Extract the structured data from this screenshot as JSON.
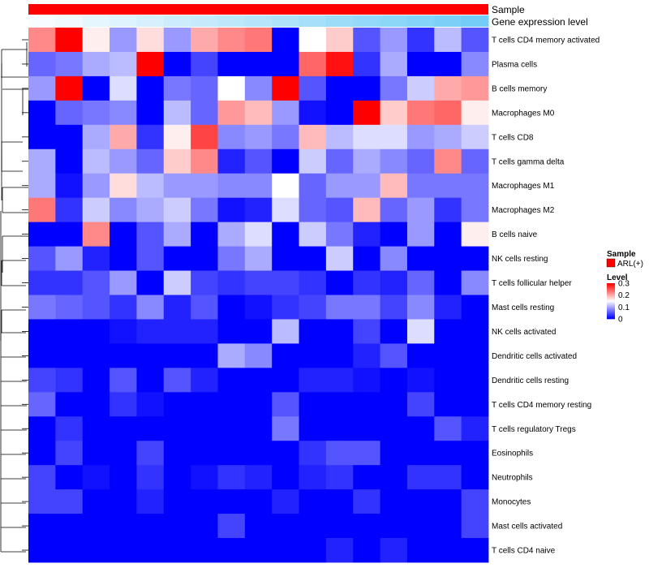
{
  "chart_data": {
    "type": "heatmap",
    "annotation_tracks": [
      {
        "name": "Sample",
        "color": "#ff0000"
      },
      {
        "name": "Gene expression level",
        "gradient": [
          "#ffffff",
          "#5bc4f5"
        ]
      }
    ],
    "rows": [
      "T cells CD4 memory activated",
      "Plasma cells",
      "B cells memory",
      "Macrophages M0",
      "T cells CD8",
      "T cells gamma delta",
      "Macrophages M1",
      "Macrophages M2",
      "B cells naive",
      "NK cells resting",
      "T cells follicular helper",
      "Mast cells resting",
      "NK cells activated",
      "Dendritic cells activated",
      "Dendritic cells resting",
      "T cells CD4 memory resting",
      "T cells regulatory  Tregs",
      "Eosinophils",
      "Neutrophils",
      "Monocytes",
      "Mast cells activated",
      "T cells CD4 naive"
    ],
    "values": [
      [
        0.22,
        0.3,
        0.16,
        0.09,
        0.17,
        0.09,
        0.2,
        0.22,
        0.23,
        0.0,
        0.15,
        0.18,
        0.05,
        0.09,
        0.03,
        0.11,
        0.05
      ],
      [
        0.06,
        0.07,
        0.1,
        0.11,
        0.3,
        0.0,
        0.04,
        0.0,
        0.0,
        0.0,
        0.24,
        0.29,
        0.03,
        0.1,
        0.0,
        0.0,
        0.08
      ],
      [
        0.09,
        0.3,
        0.0,
        0.13,
        0.0,
        0.07,
        0.06,
        0.15,
        0.08,
        0.3,
        0.05,
        0.0,
        0.0,
        0.07,
        0.12,
        0.2,
        0.21
      ],
      [
        0.0,
        0.06,
        0.07,
        0.08,
        0.0,
        0.11,
        0.06,
        0.21,
        0.19,
        0.09,
        0.01,
        0.0,
        0.3,
        0.18,
        0.23,
        0.24,
        0.16
      ],
      [
        0.0,
        0.0,
        0.1,
        0.2,
        0.03,
        0.16,
        0.26,
        0.08,
        0.09,
        0.07,
        0.19,
        0.11,
        0.13,
        0.13,
        0.09,
        0.1,
        0.12
      ],
      [
        0.1,
        0.0,
        0.11,
        0.09,
        0.06,
        0.18,
        0.22,
        0.02,
        0.05,
        0.0,
        0.12,
        0.06,
        0.1,
        0.08,
        0.06,
        0.22,
        0.06
      ],
      [
        0.1,
        0.01,
        0.09,
        0.17,
        0.11,
        0.09,
        0.09,
        0.08,
        0.08,
        0.15,
        0.06,
        0.09,
        0.09,
        0.19,
        0.07,
        0.07,
        0.07
      ],
      [
        0.23,
        0.03,
        0.12,
        0.08,
        0.1,
        0.12,
        0.07,
        0.01,
        0.02,
        0.13,
        0.06,
        0.05,
        0.19,
        0.06,
        0.09,
        0.03,
        0.07
      ],
      [
        0.0,
        0.0,
        0.22,
        0.0,
        0.05,
        0.1,
        0.0,
        0.1,
        0.13,
        0.0,
        0.12,
        0.07,
        0.02,
        0.0,
        0.09,
        0.0,
        0.16
      ],
      [
        0.05,
        0.09,
        0.02,
        0.0,
        0.05,
        0.0,
        0.0,
        0.07,
        0.1,
        0.0,
        0.0,
        0.12,
        0.0,
        0.08,
        0.0,
        0.0,
        0.0
      ],
      [
        0.03,
        0.03,
        0.05,
        0.09,
        0.0,
        0.12,
        0.04,
        0.03,
        0.04,
        0.04,
        0.03,
        0.0,
        0.03,
        0.02,
        0.06,
        0.0,
        0.08
      ],
      [
        0.07,
        0.06,
        0.05,
        0.03,
        0.08,
        0.02,
        0.05,
        0.0,
        0.01,
        0.03,
        0.04,
        0.07,
        0.07,
        0.04,
        0.08,
        0.02,
        0.0
      ],
      [
        0.0,
        0.0,
        0.0,
        0.01,
        0.02,
        0.02,
        0.02,
        0.0,
        0.0,
        0.11,
        0.0,
        0.0,
        0.04,
        0.0,
        0.13,
        0.0,
        0.0
      ],
      [
        0.0,
        0.0,
        0.0,
        0.0,
        0.0,
        0.0,
        0.0,
        0.1,
        0.08,
        0.0,
        0.0,
        0.0,
        0.02,
        0.05,
        0.0,
        0.0,
        0.0
      ],
      [
        0.04,
        0.03,
        0.0,
        0.05,
        0.0,
        0.05,
        0.02,
        0.0,
        0.0,
        0.0,
        0.02,
        0.02,
        0.01,
        0.0,
        0.01,
        0.0,
        0.0
      ],
      [
        0.06,
        0.0,
        0.0,
        0.03,
        0.01,
        0.0,
        0.0,
        0.0,
        0.0,
        0.05,
        0.0,
        0.0,
        0.0,
        0.0,
        0.04,
        0.0,
        0.0
      ],
      [
        0.0,
        0.03,
        0.0,
        0.0,
        0.0,
        0.0,
        0.0,
        0.0,
        0.0,
        0.07,
        0.0,
        0.0,
        0.0,
        0.0,
        0.0,
        0.05,
        0.02
      ],
      [
        0.0,
        0.04,
        0.0,
        0.0,
        0.04,
        0.0,
        0.0,
        0.0,
        0.0,
        0.0,
        0.03,
        0.05,
        0.05,
        0.0,
        0.0,
        0.0,
        0.0
      ],
      [
        0.04,
        0.0,
        0.01,
        0.0,
        0.03,
        0.0,
        0.01,
        0.03,
        0.02,
        0.0,
        0.02,
        0.03,
        0.0,
        0.0,
        0.03,
        0.03,
        0.0
      ],
      [
        0.04,
        0.04,
        0.0,
        0.0,
        0.02,
        0.0,
        0.0,
        0.0,
        0.0,
        0.02,
        0.0,
        0.0,
        0.03,
        0.0,
        0.0,
        0.0,
        0.04
      ],
      [
        0.0,
        0.0,
        0.0,
        0.0,
        0.0,
        0.0,
        0.0,
        0.04,
        0.0,
        0.0,
        0.0,
        0.0,
        0.0,
        0.0,
        0.0,
        0.0,
        0.04
      ],
      [
        0.0,
        0.0,
        0.0,
        0.0,
        0.0,
        0.0,
        0.0,
        0.0,
        0.0,
        0.0,
        0.0,
        0.02,
        0.0,
        0.02,
        0.0,
        0.0,
        0.0
      ]
    ],
    "color_scale": {
      "min": 0,
      "max": 0.3,
      "colors": [
        "#0000ff",
        "#ffffff",
        "#ff0000"
      ],
      "mid": 0.15
    },
    "legend": {
      "sample_title": "Sample",
      "sample_entry": "ARL(+)",
      "level_title": "Level",
      "level_ticks": [
        "0.3",
        "0.2",
        "0.1",
        "0"
      ]
    },
    "expression_gradient_values": [
      0.05,
      0.1,
      0.15,
      0.2,
      0.25,
      0.3,
      0.35,
      0.4,
      0.45,
      0.5,
      0.55,
      0.6,
      0.65,
      0.7,
      0.75,
      0.8,
      0.85
    ]
  }
}
